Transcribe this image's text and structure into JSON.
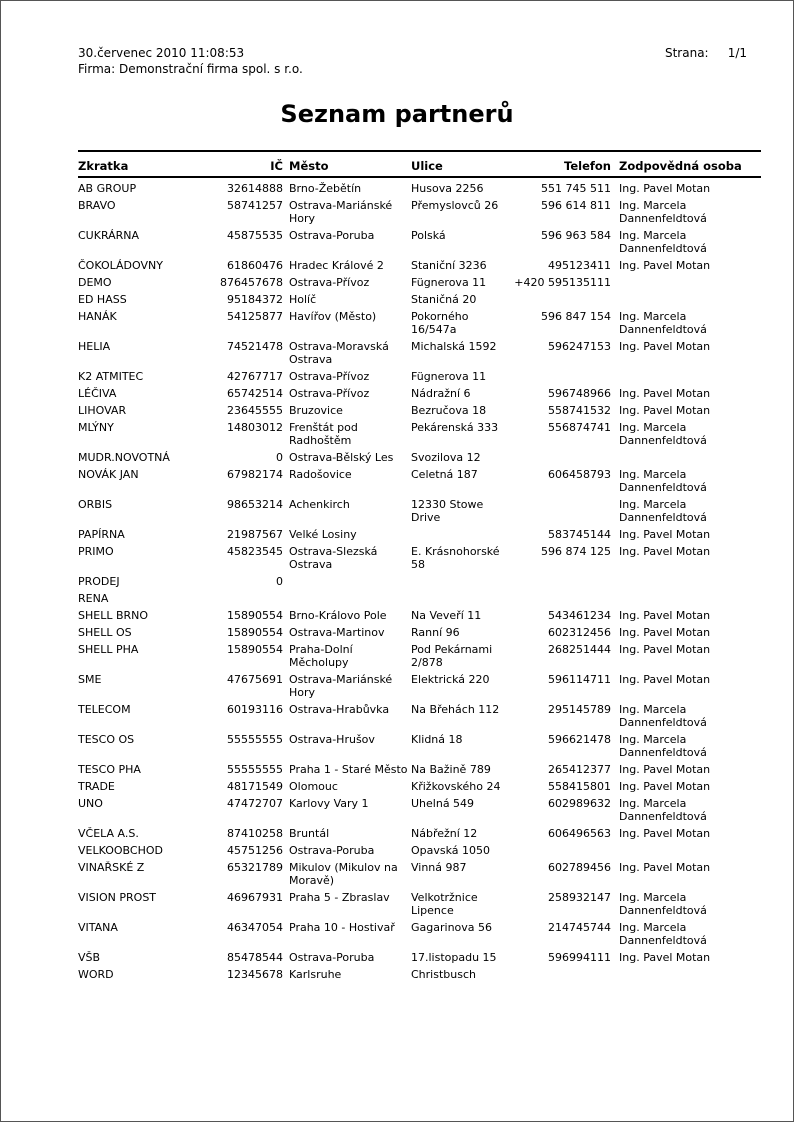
{
  "header": {
    "date": "30.červenec 2010  11:08:53",
    "company": "Firma: Demonstrační firma spol. s r.o.",
    "page_label": "Strana:",
    "page_value": "1/1"
  },
  "title": "Seznam partnerů",
  "table": {
    "columns": [
      "Zkratka",
      "IČ",
      "Město",
      "Ulice",
      "Telefon",
      "Zodpovědná osoba"
    ],
    "rows": [
      [
        "AB GROUP",
        "32614888",
        "Brno-Žebětín",
        "Husova 2256",
        "551 745 511",
        "Ing. Pavel Motan"
      ],
      [
        "BRAVO",
        "58741257",
        "Ostrava-Mariánské Hory",
        "Přemyslovců 26",
        "596 614 811",
        "Ing. Marcela Dannenfeldtová"
      ],
      [
        "CUKRÁRNA",
        "45875535",
        "Ostrava-Poruba",
        "Polská",
        "596 963 584",
        "Ing. Marcela Dannenfeldtová"
      ],
      [
        "ČOKOLÁDOVNY",
        "61860476",
        "Hradec Králové 2",
        "Staniční 3236",
        "495123411",
        "Ing. Pavel Motan"
      ],
      [
        "DEMO",
        "876457678",
        "Ostrava-Přívoz",
        "Fügnerova 11",
        "+420 595135111",
        ""
      ],
      [
        "ED HASS",
        "95184372",
        "Holíč",
        "Staničná 20",
        "",
        ""
      ],
      [
        "HANÁK",
        "54125877",
        "Havířov (Město)",
        "Pokorného 16/547a",
        "596 847 154",
        "Ing. Marcela Dannenfeldtová"
      ],
      [
        "HELIA",
        "74521478",
        "Ostrava-Moravská Ostrava",
        "Michalská 1592",
        "596247153",
        "Ing. Pavel Motan"
      ],
      [
        "K2 ATMITEC",
        "42767717",
        "Ostrava-Přívoz",
        "Fügnerova 11",
        "",
        ""
      ],
      [
        "LÉČIVA",
        "65742514",
        "Ostrava-Přívoz",
        "Nádražní 6",
        "596748966",
        "Ing. Pavel Motan"
      ],
      [
        "LIHOVAR",
        "23645555",
        "Bruzovice",
        "Bezručova 18",
        "558741532",
        "Ing. Pavel Motan"
      ],
      [
        "MLÝNY",
        "14803012",
        "Frenštát pod Radhoštěm",
        "Pekárenská 333",
        "556874741",
        "Ing. Marcela Dannenfeldtová"
      ],
      [
        "MUDR.NOVOTNÁ",
        "0",
        "Ostrava-Bělský Les",
        "Svozilova 12",
        "",
        ""
      ],
      [
        "NOVÁK JAN",
        "67982174",
        "Radošovice",
        "Celetná 187",
        "606458793",
        "Ing. Marcela Dannenfeldtová"
      ],
      [
        "ORBIS",
        "98653214",
        "Achenkirch",
        "12330 Stowe Drive",
        "",
        "Ing. Marcela Dannenfeldtová"
      ],
      [
        "PAPÍRNA",
        "21987567",
        "Velké Losiny",
        "",
        "583745144",
        "Ing. Pavel Motan"
      ],
      [
        "PRIMO",
        "45823545",
        "Ostrava-Slezská Ostrava",
        "E. Krásnohorské 58",
        "596 874 125",
        "Ing. Pavel Motan"
      ],
      [
        "PRODEJ",
        "0",
        "",
        "",
        "",
        ""
      ],
      [
        "RENA",
        "",
        "",
        "",
        "",
        ""
      ],
      [
        "SHELL BRNO",
        "15890554",
        "Brno-Královo Pole",
        "Na Veveří 11",
        "543461234",
        "Ing. Pavel Motan"
      ],
      [
        "SHELL OS",
        "15890554",
        "Ostrava-Martinov",
        "Ranní 96",
        "602312456",
        "Ing. Pavel Motan"
      ],
      [
        "SHELL PHA",
        "15890554",
        "Praha-Dolní Měcholupy",
        "Pod Pekárnami 2/878",
        "268251444",
        "Ing. Pavel Motan"
      ],
      [
        "SME",
        "47675691",
        "Ostrava-Mariánské Hory",
        "Elektrická 220",
        "596114711",
        "Ing. Pavel Motan"
      ],
      [
        "TELECOM",
        "60193116",
        "Ostrava-Hrabůvka",
        "Na Břehách 112",
        "295145789",
        "Ing. Marcela Dannenfeldtová"
      ],
      [
        "TESCO OS",
        "55555555",
        "Ostrava-Hrušov",
        "Klidná 18",
        "596621478",
        "Ing. Marcela Dannenfeldtová"
      ],
      [
        "TESCO PHA",
        "55555555",
        "Praha 1 - Staré Město",
        "Na Bažině 789",
        "265412377",
        "Ing. Pavel Motan"
      ],
      [
        "TRADE",
        "48171549",
        "Olomouc",
        "Křižkovského 24",
        "558415801",
        "Ing. Pavel Motan"
      ],
      [
        "UNO",
        "47472707",
        "Karlovy Vary 1",
        "Uhelná 549",
        "602989632",
        "Ing. Marcela Dannenfeldtová"
      ],
      [
        "VČELA A.S.",
        "87410258",
        "Bruntál",
        "Nábřežní 12",
        "606496563",
        "Ing. Pavel Motan"
      ],
      [
        "VELKOOBCHOD",
        "45751256",
        "Ostrava-Poruba",
        "Opavská 1050",
        "",
        ""
      ],
      [
        "VINAŘSKÉ Z",
        "65321789",
        "Mikulov (Mikulov na Moravě)",
        "Vinná 987",
        "602789456",
        "Ing. Pavel Motan"
      ],
      [
        "VISION PROST",
        "46967931",
        "Praha 5 - Zbraslav",
        "Velkotržnice Lipence",
        "258932147",
        "Ing. Marcela Dannenfeldtová"
      ],
      [
        "VITANA",
        "46347054",
        "Praha 10 - Hostivař",
        "Gagarinova 56",
        "214745744",
        "Ing. Marcela Dannenfeldtová"
      ],
      [
        "VŠB",
        "85478544",
        "Ostrava-Poruba",
        "17.listopadu 15",
        "596994111",
        "Ing. Pavel Motan"
      ],
      [
        "WORD",
        "12345678",
        "Karlsruhe",
        "Christbusch",
        "",
        ""
      ]
    ]
  }
}
